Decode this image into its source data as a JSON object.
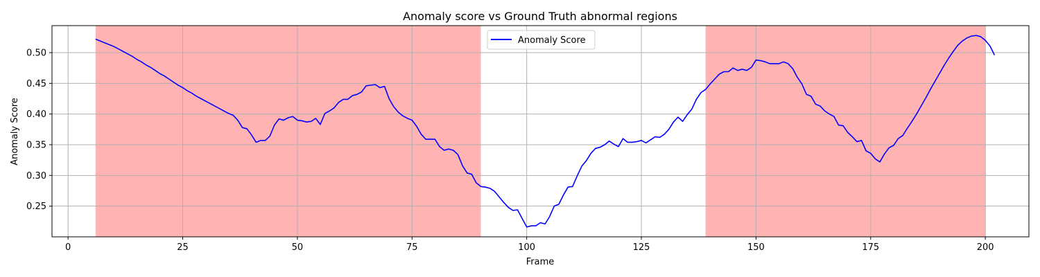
{
  "chart_data": {
    "type": "line",
    "title": "Anomaly score vs Ground Truth abnormal regions",
    "xlabel": "Frame",
    "ylabel": "Anomaly Score",
    "xlim": [
      -3.5,
      209.5
    ],
    "ylim": [
      0.2,
      0.544
    ],
    "xticks": [
      0,
      25,
      50,
      75,
      100,
      125,
      150,
      175,
      200
    ],
    "yticks": [
      0.25,
      0.3,
      0.35,
      0.4,
      0.45,
      0.5
    ],
    "ytick_labels": [
      "0.25",
      "0.30",
      "0.35",
      "0.40",
      "0.45",
      "0.50"
    ],
    "grid": true,
    "legend_position": "top-center",
    "abnormal_regions": [
      [
        6,
        90
      ],
      [
        139,
        200
      ]
    ],
    "region_color": "#ffb3b3",
    "series": [
      {
        "name": "Anomaly Score",
        "color": "#0000ff",
        "points": [
          [
            6,
            0.522
          ],
          [
            7,
            0.519
          ],
          [
            8,
            0.516
          ],
          [
            9,
            0.513
          ],
          [
            10,
            0.51
          ],
          [
            11,
            0.506
          ],
          [
            12,
            0.502
          ],
          [
            13,
            0.498
          ],
          [
            14,
            0.494
          ],
          [
            15,
            0.489
          ],
          [
            16,
            0.485
          ],
          [
            17,
            0.48
          ],
          [
            18,
            0.476
          ],
          [
            19,
            0.471
          ],
          [
            20,
            0.466
          ],
          [
            21,
            0.462
          ],
          [
            22,
            0.457
          ],
          [
            23,
            0.452
          ],
          [
            24,
            0.447
          ],
          [
            25,
            0.443
          ],
          [
            26,
            0.438
          ],
          [
            27,
            0.434
          ],
          [
            28,
            0.429
          ],
          [
            29,
            0.425
          ],
          [
            30,
            0.421
          ],
          [
            31,
            0.417
          ],
          [
            32,
            0.413
          ],
          [
            33,
            0.409
          ],
          [
            34,
            0.405
          ],
          [
            35,
            0.401
          ],
          [
            36,
            0.398
          ],
          [
            37,
            0.39
          ],
          [
            38,
            0.378
          ],
          [
            39,
            0.376
          ],
          [
            40,
            0.366
          ],
          [
            41,
            0.354
          ],
          [
            42,
            0.357
          ],
          [
            43,
            0.357
          ],
          [
            44,
            0.364
          ],
          [
            45,
            0.382
          ],
          [
            46,
            0.392
          ],
          [
            47,
            0.39
          ],
          [
            48,
            0.394
          ],
          [
            49,
            0.396
          ],
          [
            50,
            0.39
          ],
          [
            51,
            0.389
          ],
          [
            52,
            0.387
          ],
          [
            53,
            0.388
          ],
          [
            54,
            0.393
          ],
          [
            55,
            0.383
          ],
          [
            56,
            0.401
          ],
          [
            57,
            0.405
          ],
          [
            58,
            0.41
          ],
          [
            59,
            0.419
          ],
          [
            60,
            0.424
          ],
          [
            61,
            0.424
          ],
          [
            62,
            0.43
          ],
          [
            63,
            0.432
          ],
          [
            64,
            0.436
          ],
          [
            65,
            0.446
          ],
          [
            66,
            0.447
          ],
          [
            67,
            0.448
          ],
          [
            68,
            0.443
          ],
          [
            69,
            0.445
          ],
          [
            70,
            0.425
          ],
          [
            71,
            0.412
          ],
          [
            72,
            0.403
          ],
          [
            73,
            0.397
          ],
          [
            74,
            0.393
          ],
          [
            75,
            0.39
          ],
          [
            76,
            0.38
          ],
          [
            77,
            0.367
          ],
          [
            78,
            0.359
          ],
          [
            79,
            0.359
          ],
          [
            80,
            0.359
          ],
          [
            81,
            0.347
          ],
          [
            82,
            0.341
          ],
          [
            83,
            0.343
          ],
          [
            84,
            0.341
          ],
          [
            85,
            0.334
          ],
          [
            86,
            0.316
          ],
          [
            87,
            0.304
          ],
          [
            88,
            0.302
          ],
          [
            89,
            0.288
          ],
          [
            90,
            0.282
          ],
          [
            91,
            0.281
          ],
          [
            92,
            0.279
          ],
          [
            93,
            0.274
          ],
          [
            94,
            0.265
          ],
          [
            95,
            0.256
          ],
          [
            96,
            0.248
          ],
          [
            97,
            0.243
          ],
          [
            98,
            0.244
          ],
          [
            99,
            0.23
          ],
          [
            100,
            0.216
          ],
          [
            101,
            0.218
          ],
          [
            102,
            0.218
          ],
          [
            103,
            0.223
          ],
          [
            104,
            0.221
          ],
          [
            105,
            0.233
          ],
          [
            106,
            0.25
          ],
          [
            107,
            0.253
          ],
          [
            108,
            0.268
          ],
          [
            109,
            0.281
          ],
          [
            110,
            0.282
          ],
          [
            111,
            0.299
          ],
          [
            112,
            0.315
          ],
          [
            113,
            0.324
          ],
          [
            114,
            0.336
          ],
          [
            115,
            0.344
          ],
          [
            116,
            0.346
          ],
          [
            117,
            0.35
          ],
          [
            118,
            0.356
          ],
          [
            119,
            0.351
          ],
          [
            120,
            0.347
          ],
          [
            121,
            0.36
          ],
          [
            122,
            0.354
          ],
          [
            123,
            0.354
          ],
          [
            124,
            0.355
          ],
          [
            125,
            0.357
          ],
          [
            126,
            0.353
          ],
          [
            127,
            0.358
          ],
          [
            128,
            0.363
          ],
          [
            129,
            0.362
          ],
          [
            130,
            0.367
          ],
          [
            131,
            0.375
          ],
          [
            132,
            0.387
          ],
          [
            133,
            0.395
          ],
          [
            134,
            0.388
          ],
          [
            135,
            0.399
          ],
          [
            136,
            0.408
          ],
          [
            137,
            0.424
          ],
          [
            138,
            0.435
          ],
          [
            139,
            0.44
          ],
          [
            140,
            0.449
          ],
          [
            141,
            0.457
          ],
          [
            142,
            0.465
          ],
          [
            143,
            0.469
          ],
          [
            144,
            0.469
          ],
          [
            145,
            0.475
          ],
          [
            146,
            0.471
          ],
          [
            147,
            0.473
          ],
          [
            148,
            0.471
          ],
          [
            149,
            0.476
          ],
          [
            150,
            0.488
          ],
          [
            151,
            0.487
          ],
          [
            152,
            0.485
          ],
          [
            153,
            0.482
          ],
          [
            154,
            0.482
          ],
          [
            155,
            0.482
          ],
          [
            156,
            0.485
          ],
          [
            157,
            0.482
          ],
          [
            158,
            0.474
          ],
          [
            159,
            0.46
          ],
          [
            160,
            0.449
          ],
          [
            161,
            0.432
          ],
          [
            162,
            0.429
          ],
          [
            163,
            0.416
          ],
          [
            164,
            0.413
          ],
          [
            165,
            0.405
          ],
          [
            166,
            0.4
          ],
          [
            167,
            0.396
          ],
          [
            168,
            0.382
          ],
          [
            169,
            0.381
          ],
          [
            170,
            0.37
          ],
          [
            171,
            0.363
          ],
          [
            172,
            0.355
          ],
          [
            173,
            0.357
          ],
          [
            174,
            0.34
          ],
          [
            175,
            0.336
          ],
          [
            176,
            0.327
          ],
          [
            177,
            0.322
          ],
          [
            178,
            0.335
          ],
          [
            179,
            0.345
          ],
          [
            180,
            0.349
          ],
          [
            181,
            0.36
          ],
          [
            182,
            0.365
          ],
          [
            183,
            0.377
          ],
          [
            184,
            0.388
          ],
          [
            185,
            0.4
          ],
          [
            186,
            0.413
          ],
          [
            187,
            0.426
          ],
          [
            188,
            0.44
          ],
          [
            189,
            0.453
          ],
          [
            190,
            0.466
          ],
          [
            191,
            0.479
          ],
          [
            192,
            0.491
          ],
          [
            193,
            0.502
          ],
          [
            194,
            0.512
          ],
          [
            195,
            0.519
          ],
          [
            196,
            0.524
          ],
          [
            197,
            0.527
          ],
          [
            198,
            0.528
          ],
          [
            199,
            0.526
          ],
          [
            200,
            0.52
          ],
          [
            201,
            0.511
          ],
          [
            202,
            0.496
          ]
        ]
      }
    ]
  }
}
